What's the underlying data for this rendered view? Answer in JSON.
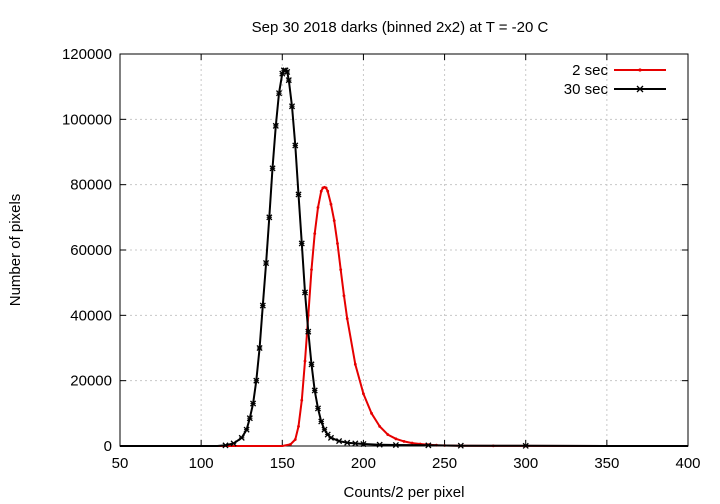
{
  "chart_data": {
    "type": "line",
    "title": "Sep 30 2018 darks (binned 2x2) at T = -20 C",
    "xlabel": "Counts/2 per pixel",
    "ylabel": "Number of pixels",
    "xlim": [
      50,
      400
    ],
    "ylim": [
      0,
      120000
    ],
    "xticks": [
      50,
      100,
      150,
      200,
      250,
      300,
      350,
      400
    ],
    "yticks": [
      0,
      20000,
      40000,
      60000,
      80000,
      100000,
      120000
    ],
    "xtick_labels": [
      "50",
      "100",
      "150",
      "200",
      "250",
      "300",
      "350",
      "400"
    ],
    "ytick_labels": [
      "0",
      "20000",
      "40000",
      "60000",
      "80000",
      "100000",
      "120000"
    ],
    "grid": true,
    "legend_position": "top-right",
    "series": [
      {
        "name": "2 sec",
        "color": "#e60000",
        "marker": "dot",
        "x": [
          50,
          100,
          150,
          155,
          158,
          160,
          162,
          164,
          166,
          168,
          170,
          172,
          174,
          175,
          176,
          177,
          178,
          180,
          182,
          184,
          186,
          188,
          190,
          195,
          200,
          205,
          210,
          215,
          220,
          225,
          230,
          235,
          240,
          245,
          250,
          260,
          280,
          300,
          350,
          400
        ],
        "y": [
          0,
          0,
          0,
          500,
          2000,
          6000,
          14000,
          26000,
          40000,
          54000,
          65000,
          73000,
          78000,
          79000,
          79200,
          79000,
          78000,
          74000,
          69000,
          62000,
          54000,
          46000,
          39000,
          25000,
          16000,
          10000,
          6000,
          3500,
          2200,
          1400,
          900,
          600,
          400,
          250,
          150,
          80,
          40,
          20,
          0,
          0
        ]
      },
      {
        "name": "30 sec",
        "color": "#000000",
        "marker": "cross",
        "x": [
          50,
          100,
          110,
          115,
          120,
          125,
          128,
          130,
          132,
          134,
          136,
          138,
          140,
          142,
          144,
          146,
          148,
          150,
          151,
          152,
          153,
          154,
          156,
          158,
          160,
          162,
          164,
          166,
          168,
          170,
          172,
          174,
          176,
          178,
          180,
          185,
          190,
          195,
          200,
          210,
          220,
          240,
          260,
          300,
          350,
          400
        ],
        "y": [
          0,
          0,
          0,
          200,
          800,
          2500,
          5000,
          8500,
          13000,
          20000,
          30000,
          43000,
          56000,
          70000,
          85000,
          98000,
          108000,
          114000,
          115000,
          115000,
          114500,
          112000,
          104000,
          92000,
          77000,
          62000,
          47000,
          35000,
          25000,
          17000,
          11500,
          7500,
          5000,
          3500,
          2500,
          1500,
          1000,
          800,
          600,
          400,
          300,
          200,
          100,
          50,
          0,
          0
        ]
      }
    ]
  }
}
